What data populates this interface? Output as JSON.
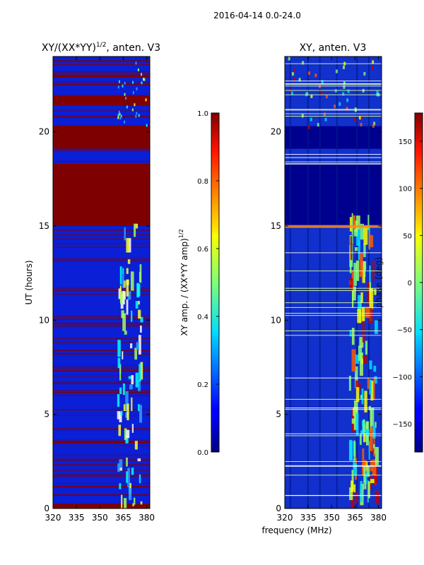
{
  "figure_title": "2016-04-14 0.0-24.0",
  "chart_data": [
    {
      "type": "heatmap",
      "title": "XY/(XX*YY)^1/2, anten. V3",
      "title_main": "XY/(XX*YY)",
      "title_exp": "1/2",
      "title_tail": ", anten. V3",
      "xlabel": "",
      "ylabel": "UT (hours)",
      "xlim": [
        320,
        382
      ],
      "ylim": [
        0,
        24
      ],
      "xticks": [
        320,
        335,
        350,
        365,
        380
      ],
      "yticks": [
        0,
        5,
        10,
        15,
        20
      ],
      "saturated_bands": [
        [
          0,
          0.25
        ],
        [
          15.0,
          18.3
        ],
        [
          19.1,
          20.3
        ],
        [
          21.4,
          21.9
        ],
        [
          22.9,
          23.0
        ]
      ],
      "grid": false,
      "colorbar": {
        "label": "XY amp. / (XX*YY amp)^1/2",
        "label_main": "XY amp. / (XX*YY amp)",
        "label_exp": "1/2",
        "range": [
          0.0,
          1.0
        ],
        "ticks": [
          "0.0",
          "0.2",
          "0.4",
          "0.6",
          "0.8",
          "1.0"
        ],
        "colormap": "jet"
      }
    },
    {
      "type": "heatmap",
      "title": "XY, anten. V3",
      "xlabel": "frequency (MHz)",
      "ylabel": "",
      "xlim": [
        320,
        382
      ],
      "ylim": [
        0,
        24
      ],
      "xticks": [
        320,
        335,
        350,
        365,
        380
      ],
      "yticks": [
        0,
        5,
        10,
        15,
        20
      ],
      "saturated_bands": [
        [
          15.0,
          18.3
        ],
        [
          19.1,
          20.3
        ]
      ],
      "grid": false,
      "colorbar": {
        "label": "phase (deg)",
        "range": [
          -180,
          180
        ],
        "ticks": [
          "−150",
          "−100",
          "−50",
          "0",
          "50",
          "100",
          "150"
        ],
        "tick_values": [
          -150,
          -100,
          -50,
          0,
          50,
          100,
          150
        ],
        "colormap": "jet"
      }
    }
  ]
}
